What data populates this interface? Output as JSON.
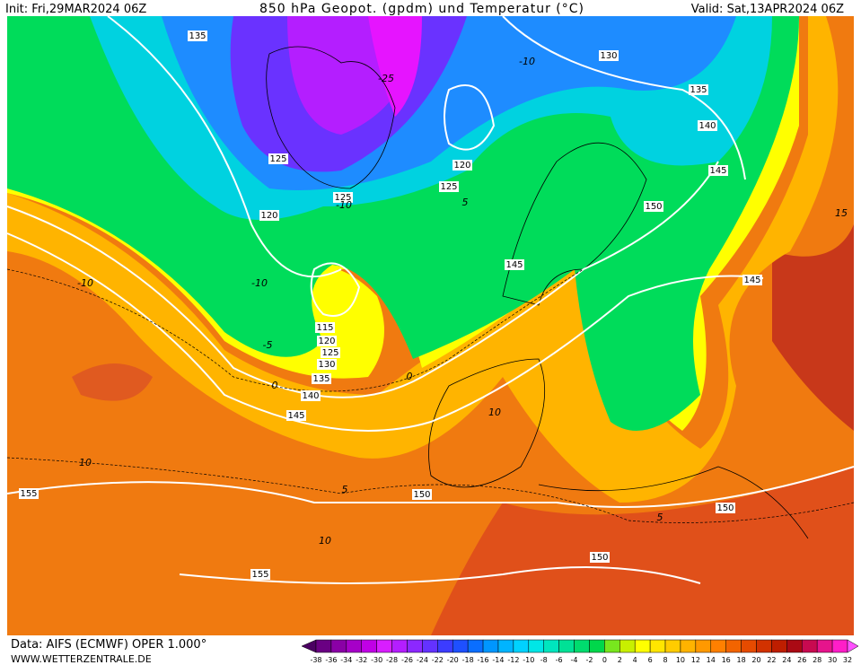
{
  "header": {
    "init": "Init: Fri,29MAR2024 06Z",
    "title": "850 hPa Geopot. (gpdm) und Temperatur (°C)",
    "valid": "Valid: Sat,13APR2024 06Z"
  },
  "footer": {
    "data_source": "Data: AIFS (ECMWF) OPER 1.000°",
    "website": "WWW.WETTERZENTRALE.DE"
  },
  "contour_labels": [
    "135",
    "130",
    "135",
    "140",
    "145",
    "150",
    "125",
    "120",
    "125",
    "125",
    "120",
    "145",
    "145",
    "115",
    "120",
    "125",
    "130",
    "135",
    "140",
    "145",
    "150",
    "150",
    "155",
    "155",
    "150"
  ],
  "temperature_labels": [
    "-25",
    "-10",
    "-10",
    "-10",
    "-5",
    "0",
    "0",
    "5",
    "10",
    "10",
    "10",
    "5",
    "5",
    "15",
    "-10"
  ],
  "colorbar": {
    "labels": [
      -38,
      -36,
      -34,
      -32,
      -30,
      -28,
      -26,
      -24,
      -22,
      -20,
      -18,
      -16,
      -14,
      -12,
      -10,
      -8,
      -6,
      -4,
      -2,
      0,
      2,
      4,
      6,
      8,
      10,
      12,
      14,
      16,
      18,
      20,
      22,
      24,
      26,
      28,
      30,
      32
    ],
    "colors": [
      "#4b0062",
      "#6a0083",
      "#8a00a6",
      "#a600c8",
      "#c000e6",
      "#d81eff",
      "#b41eff",
      "#8c28ff",
      "#6432ff",
      "#3c3cff",
      "#1e50ff",
      "#0a6eff",
      "#0096ff",
      "#00b4ff",
      "#00d2ff",
      "#00e6e6",
      "#00e6be",
      "#00e196",
      "#00dc6e",
      "#00d74b",
      "#78e61e",
      "#c8f000",
      "#ffff00",
      "#ffe600",
      "#ffcc00",
      "#ffb300",
      "#ff9900",
      "#ff8000",
      "#f26400",
      "#e64b00",
      "#d23200",
      "#be1e00",
      "#aa0a14",
      "#c80a50",
      "#e6148c",
      "#ff1ec8",
      "#ff50ff"
    ]
  }
}
